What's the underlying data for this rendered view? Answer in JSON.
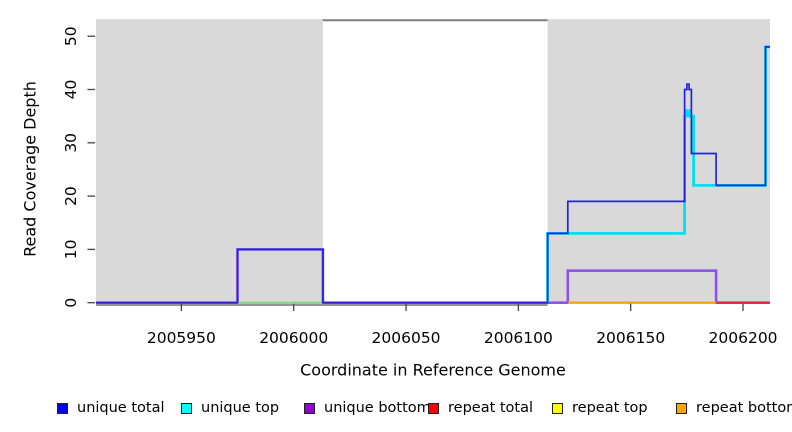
{
  "figure": {
    "y_axis_title": "Read Coverage Depth",
    "x_axis_title": "Coordinate in Reference Genome"
  },
  "chart_data": {
    "type": "line",
    "subtype": "step-coverage-plot",
    "title": "",
    "xlabel": "Coordinate in Reference Genome",
    "ylabel": "Read Coverage Depth",
    "xlim": [
      2005912,
      2006212
    ],
    "ylim": [
      0,
      53
    ],
    "grid": false,
    "legend_position": "bottom",
    "x_ticks": [
      2005950,
      2006000,
      2006050,
      2006100,
      2006150,
      2006200
    ],
    "y_ticks": [
      0,
      10,
      20,
      30,
      40,
      50
    ],
    "background_color": "#ffffff",
    "shaded_region_color": "#d9d9d9",
    "shaded_regions": [
      {
        "x1": 2005912,
        "x2": 2006013
      },
      {
        "x1": 2006113,
        "x2": 2006212
      }
    ],
    "gap_region": {
      "x1": 2006013,
      "x2": 2006113,
      "top_value": 53,
      "line_color": "#7d7d7d"
    },
    "series": [
      {
        "name": "unique bottom",
        "color": "#8c52ea",
        "width": 2.6,
        "xend": 2006212,
        "steps": [
          [
            2005912,
            0
          ],
          [
            2005975,
            10
          ],
          [
            2006013,
            0
          ],
          [
            2006122,
            6
          ],
          [
            2006188,
            0
          ]
        ]
      },
      {
        "name": "repeat total",
        "color": "#e02040",
        "width": 1.6,
        "xend": 2006212,
        "steps": [
          [
            2006122,
            0
          ]
        ]
      },
      {
        "name": "repeat bottom",
        "color": "#ff9f00",
        "width": 2.2,
        "xend": 2006188,
        "steps": [
          [
            2006122,
            0
          ]
        ]
      },
      {
        "name": "repeat top (overlaps unique top at 0, renders green)",
        "color": "#7cd87c",
        "width": 2,
        "xend": 2006013,
        "steps": [
          [
            2005975,
            0
          ]
        ]
      },
      {
        "name": "unique top",
        "color": "#00e0ee",
        "width": 2.8,
        "xend": 2006212,
        "steps": [
          [
            2006113,
            0
          ],
          [
            2006113,
            13
          ],
          [
            2006174,
            35
          ],
          [
            2006175,
            36
          ],
          [
            2006176,
            35
          ],
          [
            2006178,
            22
          ],
          [
            2006210,
            48
          ]
        ]
      },
      {
        "name": "unique total",
        "color": "#2323dd",
        "width": 1.7,
        "xend": 2006212,
        "steps": [
          [
            2005912,
            0
          ],
          [
            2005975,
            10
          ],
          [
            2006013,
            0
          ],
          [
            2006113,
            13
          ],
          [
            2006122,
            19
          ],
          [
            2006174,
            40
          ],
          [
            2006175,
            41
          ],
          [
            2006176,
            40
          ],
          [
            2006177,
            28
          ],
          [
            2006188,
            22
          ],
          [
            2006210,
            48
          ]
        ]
      }
    ],
    "legend": [
      {
        "label": "unique total",
        "color": "#0000ee"
      },
      {
        "label": "unique top",
        "color": "#00ffff"
      },
      {
        "label": "unique bottom",
        "color": "#9400d3"
      },
      {
        "label": "repeat total",
        "color": "#ff0000"
      },
      {
        "label": "repeat top",
        "color": "#ffff00"
      },
      {
        "label": "repeat bottom",
        "color": "#ffa500"
      }
    ]
  }
}
